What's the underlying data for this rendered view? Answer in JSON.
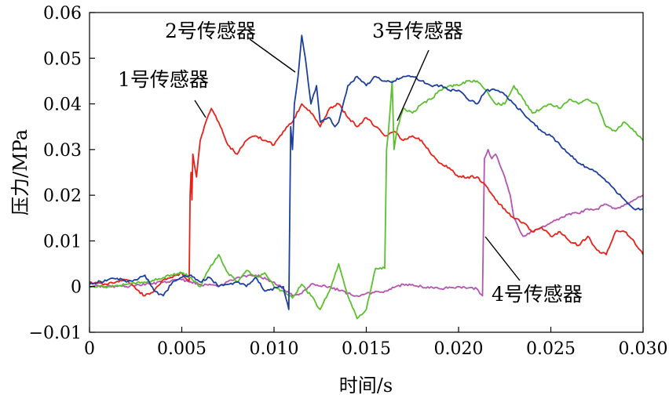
{
  "chart_data": {
    "type": "line",
    "title": "",
    "xlabel": "时间/s",
    "ylabel": "压力/MPa",
    "xlim": [
      0,
      0.03
    ],
    "ylim": [
      -0.01,
      0.06
    ],
    "x_ticks": [
      0,
      0.005,
      0.01,
      0.015,
      0.02,
      0.025,
      0.03
    ],
    "x_tick_labels": [
      "0",
      "0.005",
      "0.010",
      "0.015",
      "0.020",
      "0.025",
      "0.030"
    ],
    "y_ticks": [
      -0.01,
      0,
      0.01,
      0.02,
      0.03,
      0.04,
      0.05,
      0.06
    ],
    "y_tick_labels": [
      "−0.01",
      "0",
      "0.01",
      "0.02",
      "0.03",
      "0.04",
      "0.05",
      "0.06"
    ],
    "grid": false,
    "series": [
      {
        "name": "1号传感器",
        "color": "#e8201a",
        "points": [
          [
            0,
            0.001
          ],
          [
            0.001,
            0.0005
          ],
          [
            0.002,
            0.0015
          ],
          [
            0.0025,
            -0.0005
          ],
          [
            0.003,
            -0.002
          ],
          [
            0.0035,
            -0.001
          ],
          [
            0.004,
            0.0015
          ],
          [
            0.0045,
            0.002
          ],
          [
            0.005,
            0.003
          ],
          [
            0.0054,
            0.0012
          ],
          [
            0.00545,
            0.02
          ],
          [
            0.0055,
            0.025
          ],
          [
            0.00555,
            0.019
          ],
          [
            0.0056,
            0.029
          ],
          [
            0.0058,
            0.024
          ],
          [
            0.006,
            0.032
          ],
          [
            0.0063,
            0.036
          ],
          [
            0.0066,
            0.039
          ],
          [
            0.007,
            0.036
          ],
          [
            0.0075,
            0.031
          ],
          [
            0.008,
            0.029
          ],
          [
            0.0085,
            0.032
          ],
          [
            0.009,
            0.033
          ],
          [
            0.0095,
            0.032
          ],
          [
            0.01,
            0.031
          ],
          [
            0.0105,
            0.034
          ],
          [
            0.011,
            0.036
          ],
          [
            0.0115,
            0.04
          ],
          [
            0.012,
            0.038
          ],
          [
            0.0125,
            0.035
          ],
          [
            0.013,
            0.039
          ],
          [
            0.0135,
            0.04
          ],
          [
            0.014,
            0.037
          ],
          [
            0.0145,
            0.035
          ],
          [
            0.015,
            0.037
          ],
          [
            0.0155,
            0.035
          ],
          [
            0.016,
            0.033
          ],
          [
            0.0165,
            0.034
          ],
          [
            0.017,
            0.032
          ],
          [
            0.0175,
            0.033
          ],
          [
            0.018,
            0.032
          ],
          [
            0.0185,
            0.029
          ],
          [
            0.019,
            0.027
          ],
          [
            0.0195,
            0.026
          ],
          [
            0.02,
            0.024
          ],
          [
            0.0205,
            0.024
          ],
          [
            0.021,
            0.024
          ],
          [
            0.0215,
            0.022
          ],
          [
            0.022,
            0.019
          ],
          [
            0.0225,
            0.017
          ],
          [
            0.023,
            0.015
          ],
          [
            0.0235,
            0.014
          ],
          [
            0.024,
            0.012
          ],
          [
            0.0245,
            0.013
          ],
          [
            0.025,
            0.011
          ],
          [
            0.0255,
            0.012
          ],
          [
            0.026,
            0.01
          ],
          [
            0.0265,
            0.009
          ],
          [
            0.027,
            0.011
          ],
          [
            0.0275,
            0.008
          ],
          [
            0.028,
            0.007
          ],
          [
            0.0285,
            0.012
          ],
          [
            0.029,
            0.012
          ],
          [
            0.0295,
            0.01
          ],
          [
            0.03,
            0.007
          ]
        ]
      },
      {
        "name": "2号传感器",
        "color": "#1c3f9f",
        "points": [
          [
            0,
            0.0005
          ],
          [
            0.001,
            0.0015
          ],
          [
            0.0015,
            0.0018
          ],
          [
            0.002,
            0.001
          ],
          [
            0.0025,
            0.0015
          ],
          [
            0.003,
            0.0025
          ],
          [
            0.0035,
            -0.001
          ],
          [
            0.004,
            -0.002
          ],
          [
            0.0045,
            0.001
          ],
          [
            0.005,
            0.002
          ],
          [
            0.0055,
            0.0025
          ],
          [
            0.006,
            0.001
          ],
          [
            0.0065,
            0.002
          ],
          [
            0.007,
            0.0
          ],
          [
            0.0075,
            0.0005
          ],
          [
            0.008,
            0.001
          ],
          [
            0.0085,
            0.0
          ],
          [
            0.009,
            0.002
          ],
          [
            0.0095,
            -0.001
          ],
          [
            0.0105,
            0.0
          ],
          [
            0.0108,
            -0.005
          ],
          [
            0.0109,
            0.035
          ],
          [
            0.011,
            0.03
          ],
          [
            0.0111,
            0.04
          ],
          [
            0.0113,
            0.046
          ],
          [
            0.0115,
            0.055
          ],
          [
            0.0117,
            0.05
          ],
          [
            0.012,
            0.04
          ],
          [
            0.0123,
            0.044
          ],
          [
            0.0125,
            0.036
          ],
          [
            0.013,
            0.037
          ],
          [
            0.0133,
            0.035
          ],
          [
            0.0135,
            0.036
          ],
          [
            0.014,
            0.044
          ],
          [
            0.0145,
            0.046
          ],
          [
            0.015,
            0.044
          ],
          [
            0.0155,
            0.046
          ],
          [
            0.016,
            0.045
          ],
          [
            0.0165,
            0.045
          ],
          [
            0.017,
            0.046
          ],
          [
            0.0175,
            0.046
          ],
          [
            0.018,
            0.045
          ],
          [
            0.0185,
            0.044
          ],
          [
            0.019,
            0.044
          ],
          [
            0.0195,
            0.043
          ],
          [
            0.02,
            0.043
          ],
          [
            0.0205,
            0.041
          ],
          [
            0.021,
            0.04
          ],
          [
            0.0215,
            0.043
          ],
          [
            0.022,
            0.043
          ],
          [
            0.0225,
            0.042
          ],
          [
            0.023,
            0.04
          ],
          [
            0.0235,
            0.038
          ],
          [
            0.024,
            0.036
          ],
          [
            0.0245,
            0.034
          ],
          [
            0.025,
            0.033
          ],
          [
            0.0255,
            0.031
          ],
          [
            0.026,
            0.029
          ],
          [
            0.0265,
            0.027
          ],
          [
            0.027,
            0.026
          ],
          [
            0.0275,
            0.025
          ],
          [
            0.028,
            0.023
          ],
          [
            0.0285,
            0.021
          ],
          [
            0.029,
            0.019
          ],
          [
            0.0295,
            0.017
          ],
          [
            0.03,
            0.017
          ]
        ]
      },
      {
        "name": "3号传感器",
        "color": "#5bbf2f",
        "points": [
          [
            0,
            0.0
          ],
          [
            0.001,
            0.0
          ],
          [
            0.002,
            0.0005
          ],
          [
            0.003,
            0.001
          ],
          [
            0.004,
            0.002
          ],
          [
            0.005,
            0.003
          ],
          [
            0.0055,
            0.002
          ],
          [
            0.006,
            0.0
          ],
          [
            0.0065,
            0.004
          ],
          [
            0.007,
            0.007
          ],
          [
            0.0075,
            0.003
          ],
          [
            0.008,
            0.001
          ],
          [
            0.0085,
            0.0035
          ],
          [
            0.009,
            0.002
          ],
          [
            0.0095,
            0.003
          ],
          [
            0.01,
            0.0
          ],
          [
            0.0105,
            -0.001
          ],
          [
            0.011,
            -0.0025
          ],
          [
            0.0115,
            0.0005
          ],
          [
            0.012,
            -0.002
          ],
          [
            0.0125,
            -0.005
          ],
          [
            0.013,
            -0.001
          ],
          [
            0.0135,
            0.005
          ],
          [
            0.014,
            -0.002
          ],
          [
            0.0145,
            -0.007
          ],
          [
            0.015,
            -0.005
          ],
          [
            0.0155,
            0.004
          ],
          [
            0.016,
            0.004
          ],
          [
            0.0161,
            0.03
          ],
          [
            0.0162,
            0.034
          ],
          [
            0.0164,
            0.045
          ],
          [
            0.0165,
            0.03
          ],
          [
            0.0167,
            0.035
          ],
          [
            0.017,
            0.039
          ],
          [
            0.0175,
            0.038
          ],
          [
            0.018,
            0.04
          ],
          [
            0.0185,
            0.041
          ],
          [
            0.019,
            0.043
          ],
          [
            0.0195,
            0.044
          ],
          [
            0.02,
            0.044
          ],
          [
            0.0205,
            0.045
          ],
          [
            0.021,
            0.045
          ],
          [
            0.0215,
            0.043
          ],
          [
            0.022,
            0.04
          ],
          [
            0.0225,
            0.04
          ],
          [
            0.023,
            0.044
          ],
          [
            0.0235,
            0.041
          ],
          [
            0.024,
            0.038
          ],
          [
            0.0245,
            0.039
          ],
          [
            0.025,
            0.04
          ],
          [
            0.0255,
            0.039
          ],
          [
            0.026,
            0.041
          ],
          [
            0.0265,
            0.04
          ],
          [
            0.027,
            0.041
          ],
          [
            0.0275,
            0.04
          ],
          [
            0.028,
            0.035
          ],
          [
            0.0285,
            0.034
          ],
          [
            0.029,
            0.036
          ],
          [
            0.0295,
            0.034
          ],
          [
            0.03,
            0.032
          ]
        ]
      },
      {
        "name": "4号传感器",
        "color": "#b455b0",
        "points": [
          [
            0,
            0.0
          ],
          [
            0.002,
            0.0
          ],
          [
            0.004,
            0.001
          ],
          [
            0.005,
            0.0015
          ],
          [
            0.006,
            0.0005
          ],
          [
            0.007,
            0.0
          ],
          [
            0.008,
            0.002
          ],
          [
            0.009,
            0.0025
          ],
          [
            0.01,
            0.001
          ],
          [
            0.0105,
            -0.0005
          ],
          [
            0.011,
            -0.002
          ],
          [
            0.0115,
            -0.0015
          ],
          [
            0.012,
            0.0005
          ],
          [
            0.013,
            0.0
          ],
          [
            0.014,
            -0.0015
          ],
          [
            0.0145,
            -0.002
          ],
          [
            0.015,
            -0.0015
          ],
          [
            0.016,
            -0.001
          ],
          [
            0.017,
            0.0005
          ],
          [
            0.018,
            0.0
          ],
          [
            0.019,
            -0.0005
          ],
          [
            0.02,
            0.0
          ],
          [
            0.021,
            -0.0005
          ],
          [
            0.0213,
            -0.002
          ],
          [
            0.0214,
            0.028
          ],
          [
            0.0216,
            0.03
          ],
          [
            0.0218,
            0.028
          ],
          [
            0.022,
            0.029
          ],
          [
            0.0223,
            0.026
          ],
          [
            0.0225,
            0.024
          ],
          [
            0.0228,
            0.02
          ],
          [
            0.023,
            0.015
          ],
          [
            0.0235,
            0.011
          ],
          [
            0.024,
            0.012
          ],
          [
            0.0245,
            0.013
          ],
          [
            0.025,
            0.014
          ],
          [
            0.0255,
            0.015
          ],
          [
            0.026,
            0.016
          ],
          [
            0.0265,
            0.016
          ],
          [
            0.027,
            0.017
          ],
          [
            0.0275,
            0.017
          ],
          [
            0.028,
            0.018
          ],
          [
            0.0285,
            0.017
          ],
          [
            0.029,
            0.018
          ],
          [
            0.0295,
            0.019
          ],
          [
            0.03,
            0.02
          ]
        ]
      }
    ],
    "annotations": [
      {
        "text": "1号传感器",
        "series": 0,
        "at": [
          0.0062,
          0.0365
        ]
      },
      {
        "text": "2号传感器",
        "series": 1,
        "at": [
          0.0112,
          0.0475
        ]
      },
      {
        "text": "3号传感器",
        "series": 2,
        "at": [
          0.0167,
          0.037
        ]
      },
      {
        "text": "4号传感器",
        "series": 3,
        "at": [
          0.0216,
          0.011
        ]
      }
    ]
  }
}
